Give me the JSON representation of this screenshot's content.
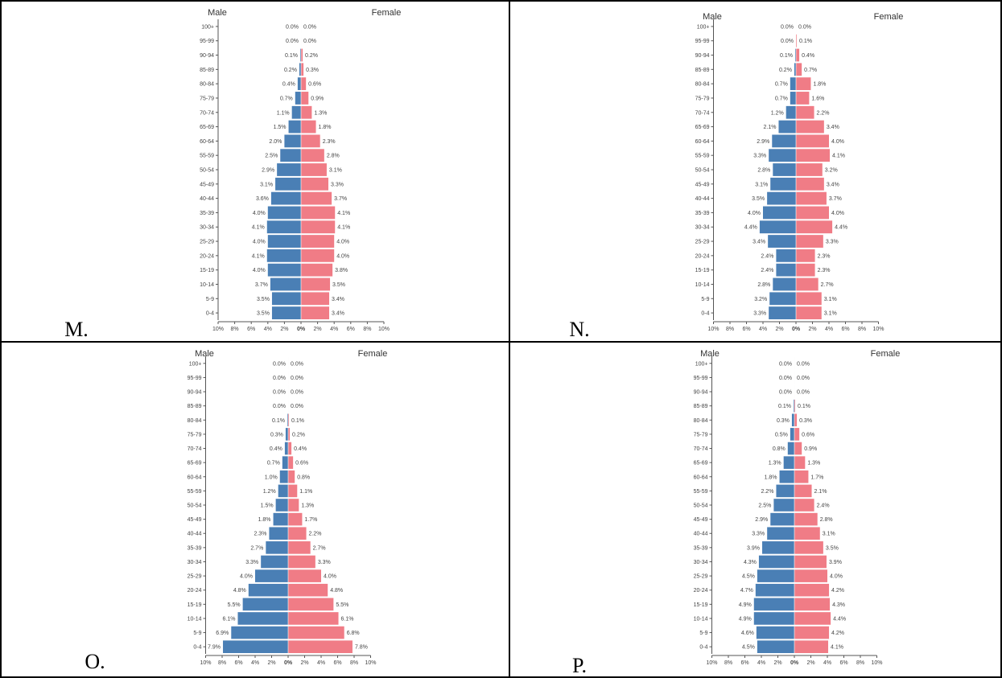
{
  "colors": {
    "male": "#4a7fb5",
    "female": "#f07c86",
    "axis": "#555555"
  },
  "charts": {
    "ages": [
      "0-4",
      "5-9",
      "10-14",
      "15-19",
      "20-24",
      "25-29",
      "30-34",
      "35-39",
      "40-44",
      "45-49",
      "50-54",
      "55-59",
      "60-64",
      "65-69",
      "70-74",
      "75-79",
      "80-84",
      "85-89",
      "90-94",
      "95-99",
      "100+"
    ],
    "xticks": [
      "10%",
      "8%",
      "6%",
      "4%",
      "2%",
      "0%",
      "2%",
      "4%",
      "6%",
      "8%",
      "10%"
    ],
    "male_title": "Male",
    "female_title": "Female"
  },
  "chart_data": [
    {
      "type": "bar",
      "panel_label": "M.",
      "categories": [
        "0-4",
        "5-9",
        "10-14",
        "15-19",
        "20-24",
        "25-29",
        "30-34",
        "35-39",
        "40-44",
        "45-49",
        "50-54",
        "55-59",
        "60-64",
        "65-69",
        "70-74",
        "75-79",
        "80-84",
        "85-89",
        "90-94",
        "95-99",
        "100+"
      ],
      "series": [
        {
          "name": "Male",
          "values": [
            3.5,
            3.5,
            3.7,
            4.0,
            4.1,
            4.0,
            4.1,
            4.0,
            3.6,
            3.1,
            2.9,
            2.5,
            2.0,
            1.5,
            1.1,
            0.7,
            0.4,
            0.2,
            0.1,
            0.0,
            0.0
          ]
        },
        {
          "name": "Female",
          "values": [
            3.4,
            3.4,
            3.5,
            3.8,
            4.0,
            4.0,
            4.1,
            4.1,
            3.7,
            3.3,
            3.1,
            2.8,
            2.3,
            1.8,
            1.3,
            0.9,
            0.6,
            0.3,
            0.2,
            0.0,
            0.0
          ]
        }
      ],
      "xlim": [
        -10,
        10
      ]
    },
    {
      "type": "bar",
      "panel_label": "N.",
      "categories": [
        "0-4",
        "5-9",
        "10-14",
        "15-19",
        "20-24",
        "25-29",
        "30-34",
        "35-39",
        "40-44",
        "45-49",
        "50-54",
        "55-59",
        "60-64",
        "65-69",
        "70-74",
        "75-79",
        "80-84",
        "85-89",
        "90-94",
        "95-99",
        "100+"
      ],
      "series": [
        {
          "name": "Male",
          "values": [
            3.3,
            3.2,
            2.8,
            2.4,
            2.4,
            3.4,
            4.4,
            4.0,
            3.5,
            3.1,
            2.8,
            3.3,
            2.9,
            2.1,
            1.2,
            0.7,
            0.7,
            0.2,
            0.1,
            0.0,
            0.0
          ]
        },
        {
          "name": "Female",
          "values": [
            3.1,
            3.1,
            2.7,
            2.3,
            2.3,
            3.3,
            4.4,
            4.0,
            3.7,
            3.4,
            3.2,
            4.1,
            4.0,
            3.4,
            2.2,
            1.6,
            1.8,
            0.7,
            0.4,
            0.1,
            0.0
          ]
        }
      ],
      "xlim": [
        -10,
        10
      ]
    },
    {
      "type": "bar",
      "panel_label": "O.",
      "categories": [
        "0-4",
        "5-9",
        "10-14",
        "15-19",
        "20-24",
        "25-29",
        "30-34",
        "35-39",
        "40-44",
        "45-49",
        "50-54",
        "55-59",
        "60-64",
        "65-69",
        "70-74",
        "75-79",
        "80-84",
        "85-89",
        "90-94",
        "95-99",
        "100+"
      ],
      "series": [
        {
          "name": "Male",
          "values": [
            7.9,
            6.9,
            6.1,
            5.5,
            4.8,
            4.0,
            3.3,
            2.7,
            2.3,
            1.8,
            1.5,
            1.2,
            1.0,
            0.7,
            0.4,
            0.3,
            0.1,
            0.0,
            0.0,
            0.0,
            0.0
          ]
        },
        {
          "name": "Female",
          "values": [
            7.8,
            6.8,
            6.1,
            5.5,
            4.8,
            4.0,
            3.3,
            2.7,
            2.2,
            1.7,
            1.3,
            1.1,
            0.8,
            0.6,
            0.4,
            0.2,
            0.1,
            0.0,
            0.0,
            0.0,
            0.0
          ]
        }
      ],
      "xlim": [
        -10,
        10
      ]
    },
    {
      "type": "bar",
      "panel_label": "P.",
      "categories": [
        "0-4",
        "5-9",
        "10-14",
        "15-19",
        "20-24",
        "25-29",
        "30-34",
        "35-39",
        "40-44",
        "45-49",
        "50-54",
        "55-59",
        "60-64",
        "65-69",
        "70-74",
        "75-79",
        "80-84",
        "85-89",
        "90-94",
        "95-99",
        "100+"
      ],
      "series": [
        {
          "name": "Male",
          "values": [
            4.5,
            4.6,
            4.9,
            4.9,
            4.7,
            4.5,
            4.3,
            3.9,
            3.3,
            2.9,
            2.5,
            2.2,
            1.8,
            1.3,
            0.8,
            0.5,
            0.3,
            0.1,
            0.0,
            0.0,
            0.0
          ]
        },
        {
          "name": "Female",
          "values": [
            4.1,
            4.2,
            4.4,
            4.3,
            4.2,
            4.0,
            3.9,
            3.5,
            3.1,
            2.8,
            2.4,
            2.1,
            1.7,
            1.3,
            0.9,
            0.6,
            0.3,
            0.1,
            0.0,
            0.0,
            0.0
          ]
        }
      ],
      "xlim": [
        -10,
        10
      ]
    }
  ]
}
